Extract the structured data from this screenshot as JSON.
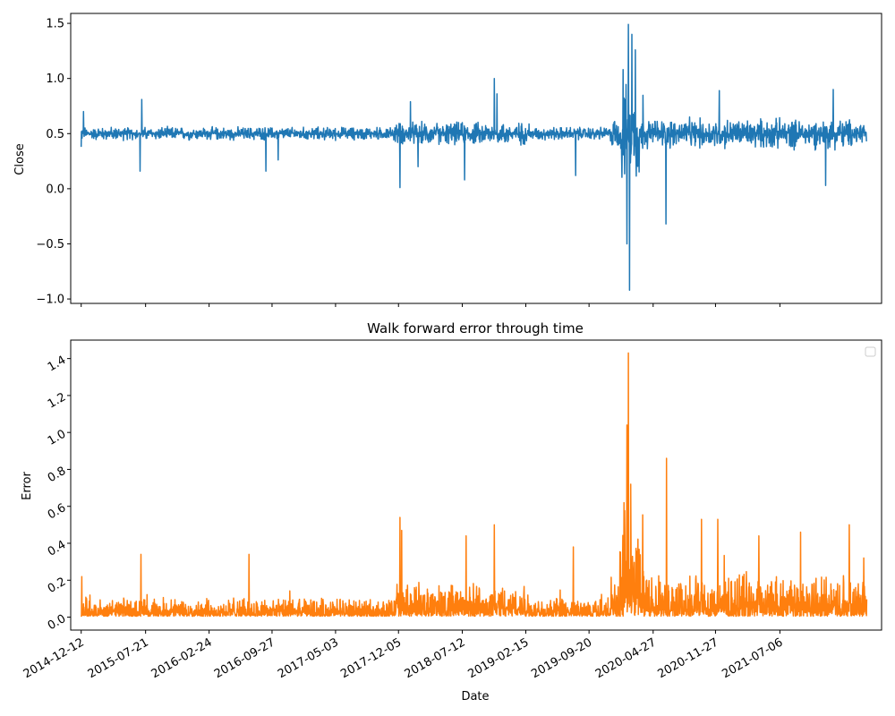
{
  "chart_data": [
    {
      "type": "line",
      "title": "",
      "xlabel": "",
      "ylabel": "Close",
      "ylim": [
        -1.04,
        1.59
      ],
      "yticks": [
        -1.0,
        -0.5,
        0.0,
        0.5,
        1.0,
        1.5
      ],
      "ytick_labels": [
        "−1.0",
        "−0.5",
        "0.0",
        "0.5",
        "1.0",
        "1.5"
      ],
      "xaxis_type": "date",
      "x_range": [
        "2014-11-06",
        "2022-06-20"
      ],
      "data_range": [
        "2014-12-12",
        "2022-04-30"
      ],
      "grid": false,
      "legend": "none",
      "series": [
        {
          "color": "#1f77b4",
          "baseline": 0.5,
          "points": [
            {
              "x": "2014-12-12",
              "y": 0.38
            },
            {
              "x": "2014-12-20",
              "y": 0.7
            },
            {
              "x": "2015-07-08",
              "y": 0.81
            },
            {
              "x": "2015-07-02",
              "y": 0.16
            },
            {
              "x": "2016-09-06",
              "y": 0.16
            },
            {
              "x": "2016-10-18",
              "y": 0.26
            },
            {
              "x": "2017-12-10",
              "y": 0.01
            },
            {
              "x": "2018-01-15",
              "y": 0.79
            },
            {
              "x": "2018-02-10",
              "y": 0.2
            },
            {
              "x": "2018-07-20",
              "y": 0.08
            },
            {
              "x": "2018-10-30",
              "y": 1.0
            },
            {
              "x": "2018-11-08",
              "y": 0.86
            },
            {
              "x": "2019-08-05",
              "y": 0.12
            },
            {
              "x": "2020-01-15",
              "y": 1.08
            },
            {
              "x": "2020-01-28",
              "y": -0.5
            },
            {
              "x": "2020-02-02",
              "y": 1.49
            },
            {
              "x": "2020-02-06",
              "y": -0.92
            },
            {
              "x": "2020-02-14",
              "y": 1.4
            },
            {
              "x": "2020-02-26",
              "y": 1.26
            },
            {
              "x": "2020-06-10",
              "y": -0.32
            },
            {
              "x": "2020-12-10",
              "y": 0.89
            },
            {
              "x": "2021-12-10",
              "y": 0.03
            },
            {
              "x": "2022-01-05",
              "y": 0.9
            },
            {
              "x": "2022-04-30",
              "y": 0.43
            }
          ]
        }
      ]
    },
    {
      "type": "line",
      "title": "Walk forward error through time",
      "xlabel": "Date",
      "ylabel": "Error",
      "ylim": [
        -0.07,
        1.5
      ],
      "yticks": [
        0.0,
        0.2,
        0.4,
        0.6,
        0.8,
        1.0,
        1.2,
        1.4
      ],
      "ytick_labels": [
        "0.0",
        "0.2",
        "0.4",
        "0.6",
        "0.8",
        "1.0",
        "1.2",
        "1.4"
      ],
      "xaxis_type": "date",
      "x_range": [
        "2014-11-06",
        "2022-06-20"
      ],
      "data_range": [
        "2014-12-12",
        "2022-04-30"
      ],
      "xticks": [
        "2014-12-12",
        "2015-07-21",
        "2016-02-24",
        "2016-09-27",
        "2017-05-03",
        "2017-12-05",
        "2018-07-12",
        "2019-02-15",
        "2019-09-20",
        "2020-04-27",
        "2020-11-27",
        "2021-07-06"
      ],
      "xtick_rotation": 30,
      "ytick_rotation": 30,
      "grid": false,
      "legend": "top-right, empty",
      "series": [
        {
          "color": "#ff7f0e",
          "baseline": 0.05,
          "points": [
            {
              "x": "2014-12-14",
              "y": 0.22
            },
            {
              "x": "2015-07-05",
              "y": 0.34
            },
            {
              "x": "2016-07-10",
              "y": 0.34
            },
            {
              "x": "2017-12-10",
              "y": 0.54
            },
            {
              "x": "2017-12-16",
              "y": 0.47
            },
            {
              "x": "2018-07-25",
              "y": 0.44
            },
            {
              "x": "2018-10-30",
              "y": 0.5
            },
            {
              "x": "2019-07-28",
              "y": 0.38
            },
            {
              "x": "2020-01-18",
              "y": 0.62
            },
            {
              "x": "2020-01-28",
              "y": 1.04
            },
            {
              "x": "2020-02-02",
              "y": 1.43
            },
            {
              "x": "2020-02-10",
              "y": 0.72
            },
            {
              "x": "2020-06-12",
              "y": 0.86
            },
            {
              "x": "2020-10-10",
              "y": 0.53
            },
            {
              "x": "2020-12-05",
              "y": 0.53
            },
            {
              "x": "2021-04-25",
              "y": 0.44
            },
            {
              "x": "2021-09-15",
              "y": 0.46
            },
            {
              "x": "2022-03-01",
              "y": 0.5
            },
            {
              "x": "2022-04-20",
              "y": 0.32
            }
          ]
        }
      ]
    }
  ]
}
